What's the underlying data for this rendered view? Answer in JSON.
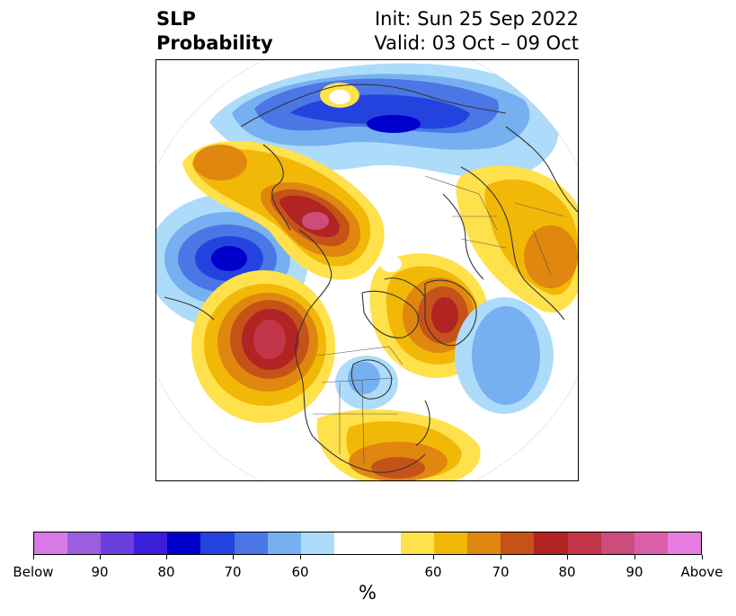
{
  "header": {
    "title_line1": "SLP",
    "title_line2": "Probability",
    "init_text": "Init: Sun 25 Sep 2022",
    "valid_text": "Valid: 03 Oct – 09 Oct"
  },
  "colorbar": {
    "swatches": [
      "#d77ae6",
      "#9b5ee0",
      "#6b3fdd",
      "#3a1fd9",
      "#0000cd",
      "#2442dd",
      "#4a76e6",
      "#77b0f1",
      "#addcfa",
      "#ffffff",
      "#ffe14c",
      "#f2b807",
      "#e0870f",
      "#c55319",
      "#b22323",
      "#c33549",
      "#cc4d7b",
      "#db5fa8",
      "#e67de0"
    ],
    "ticks": [
      "Below",
      "90",
      "80",
      "70",
      "60",
      "60",
      "70",
      "80",
      "90",
      "Above"
    ],
    "unit": "%"
  },
  "map": {
    "projection": "north-polar-stereographic",
    "coastline_color": "#333333"
  }
}
